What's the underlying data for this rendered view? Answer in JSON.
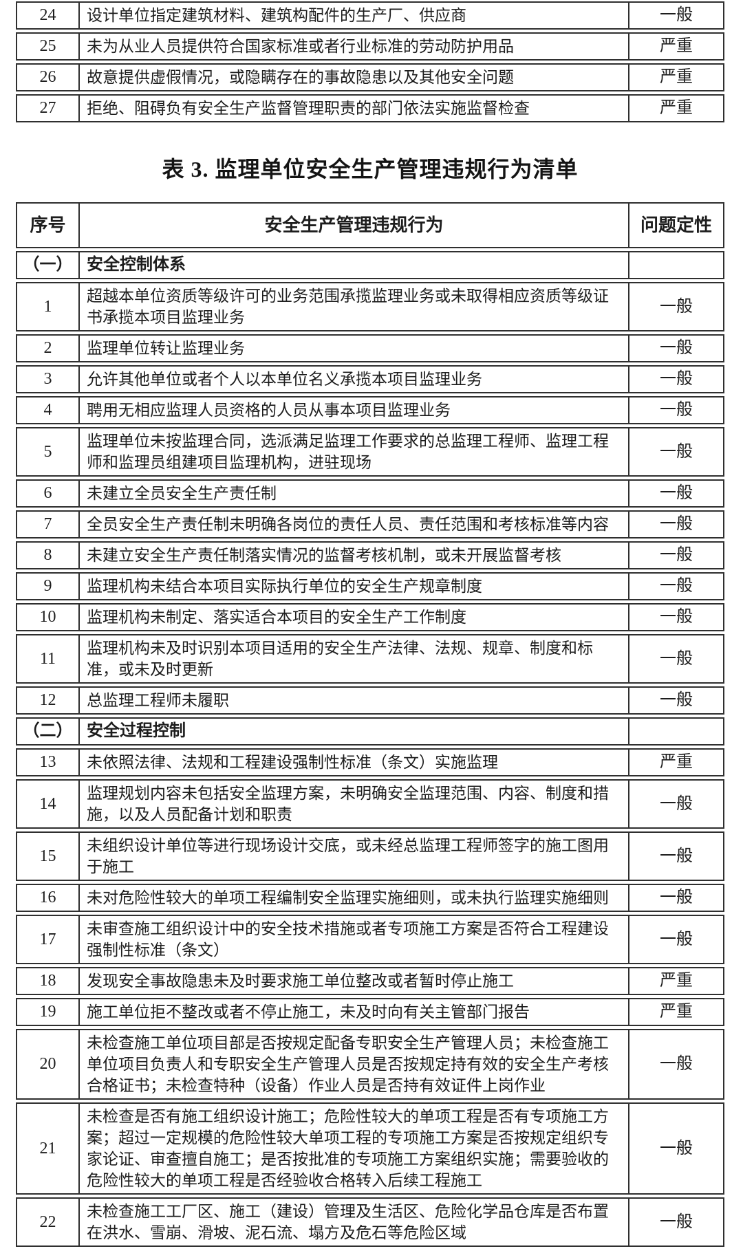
{
  "document": {
    "title": "表 3. 监理单位安全生产管理违规行为清单"
  },
  "colors": {
    "background": "#ffffff",
    "text": "#1d1d1d",
    "border": "#2f2f2f"
  },
  "continued_table": {
    "rows": [
      {
        "no": "24",
        "behavior": "设计单位指定建筑材料、建筑构配件的生产厂、供应商",
        "severity": "一般"
      },
      {
        "no": "25",
        "behavior": "未为从业人员提供符合国家标准或者行业标准的劳动防护用品",
        "severity": "严重"
      },
      {
        "no": "26",
        "behavior": "故意提供虚假情况，或隐瞒存在的事故隐患以及其他安全问题",
        "severity": "严重"
      },
      {
        "no": "27",
        "behavior": "拒绝、阻碍负有安全生产监督管理职责的部门依法实施监督检查",
        "severity": "严重"
      }
    ]
  },
  "table3": {
    "headers": {
      "no": "序号",
      "behavior": "安全生产管理违规行为",
      "severity": "问题定性"
    },
    "rows": [
      {
        "no": "（一）",
        "behavior": "安全控制体系",
        "severity": "",
        "section": true
      },
      {
        "no": "1",
        "behavior": "超越本单位资质等级许可的业务范围承揽监理业务或未取得相应资质等级证书承揽本项目监理业务",
        "severity": "一般"
      },
      {
        "no": "2",
        "behavior": "监理单位转让监理业务",
        "severity": "一般"
      },
      {
        "no": "3",
        "behavior": "允许其他单位或者个人以本单位名义承揽本项目监理业务",
        "severity": "一般"
      },
      {
        "no": "4",
        "behavior": "聘用无相应监理人员资格的人员从事本项目监理业务",
        "severity": "一般"
      },
      {
        "no": "5",
        "behavior": "监理单位未按监理合同，选派满足监理工作要求的总监理工程师、监理工程师和监理员组建项目监理机构，进驻现场",
        "severity": "一般"
      },
      {
        "no": "6",
        "behavior": "未建立全员安全生产责任制",
        "severity": "一般"
      },
      {
        "no": "7",
        "behavior": "全员安全生产责任制未明确各岗位的责任人员、责任范围和考核标准等内容",
        "severity": "一般"
      },
      {
        "no": "8",
        "behavior": "未建立安全生产责任制落实情况的监督考核机制，或未开展监督考核",
        "severity": "一般"
      },
      {
        "no": "9",
        "behavior": "监理机构未结合本项目实际执行单位的安全生产规章制度",
        "severity": "一般"
      },
      {
        "no": "10",
        "behavior": "监理机构未制定、落实适合本项目的安全生产工作制度",
        "severity": "一般"
      },
      {
        "no": "11",
        "behavior": "监理机构未及时识别本项目适用的安全生产法律、法规、规章、制度和标准，或未及时更新",
        "severity": "一般"
      },
      {
        "no": "12",
        "behavior": "总监理工程师未履职",
        "severity": "一般"
      },
      {
        "no": "（二）",
        "behavior": "安全过程控制",
        "severity": "",
        "section": true
      },
      {
        "no": "13",
        "behavior": "未依照法律、法规和工程建设强制性标准（条文）实施监理",
        "severity": "严重"
      },
      {
        "no": "14",
        "behavior": "监理规划内容未包括安全监理方案，未明确安全监理范围、内容、制度和措施，以及人员配备计划和职责",
        "severity": "一般"
      },
      {
        "no": "15",
        "behavior": "未组织设计单位等进行现场设计交底，或未经总监理工程师签字的施工图用于施工",
        "severity": "一般"
      },
      {
        "no": "16",
        "behavior": "未对危险性较大的单项工程编制安全监理实施细则，或未执行监理实施细则",
        "severity": "一般"
      },
      {
        "no": "17",
        "behavior": "未审查施工组织设计中的安全技术措施或者专项施工方案是否符合工程建设强制性标准（条文）",
        "severity": "一般"
      },
      {
        "no": "18",
        "behavior": "发现安全事故隐患未及时要求施工单位整改或者暂时停止施工",
        "severity": "严重"
      },
      {
        "no": "19",
        "behavior": "施工单位拒不整改或者不停止施工，未及时向有关主管部门报告",
        "severity": "严重"
      },
      {
        "no": "20",
        "behavior": "未检查施工单位项目部是否按规定配备专职安全生产管理人员；未检查施工单位项目负责人和专职安全生产管理人员是否按规定持有效的安全生产考核合格证书；未检查特种（设备）作业人员是否持有效证件上岗作业",
        "severity": "一般"
      },
      {
        "no": "21",
        "behavior": "未检查是否有施工组织设计施工；危险性较大的单项工程是否有专项施工方案；超过一定规模的危险性较大单项工程的专项施工方案是否按规定组织专家论证、审查擅自施工；是否按批准的专项施工方案组织实施；需要验收的危险性较大的单项工程是否经验收合格转入后续工程施工",
        "severity": "一般"
      },
      {
        "no": "22",
        "behavior": "未检查施工工厂区、施工（建设）管理及生活区、危险化学品仓库是否布置在洪水、雪崩、滑坡、泥石流、塌方及危石等危险区域",
        "severity": "一般"
      }
    ]
  }
}
